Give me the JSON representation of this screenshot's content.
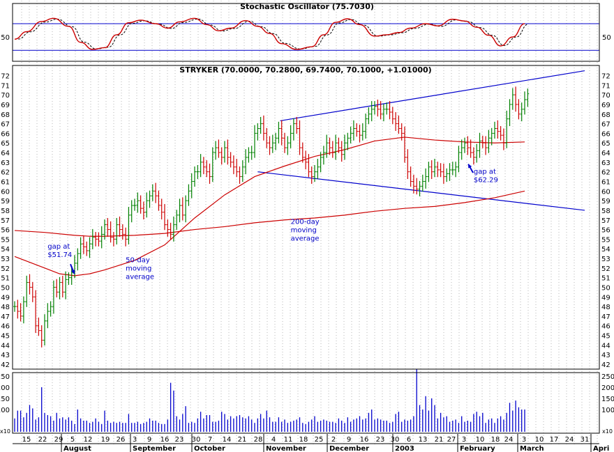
{
  "chart_data": [
    {
      "type": "line",
      "panel": "stochastic",
      "title": "Stochastic Oscillator (75.7030)",
      "ylim": [
        0,
        100
      ],
      "y_ticks": [
        "50"
      ],
      "reference_lines": [
        80,
        20
      ],
      "grid": "vertical dotted",
      "colors": {
        "k_line": "#cc0000",
        "d_line": "#000000",
        "reference": "#0000cc"
      },
      "series": [
        {
          "x": [
            0,
            4,
            9,
            13,
            18,
            22,
            26,
            30,
            34,
            38,
            42,
            47,
            51,
            55,
            60,
            64,
            68,
            72,
            77,
            81,
            85,
            89,
            94,
            99,
            103,
            107,
            111,
            115,
            120,
            124,
            128,
            132,
            137,
            141,
            146,
            150,
            154,
            158,
            162,
            166,
            170
          ],
          "values": [
            45,
            62,
            85,
            92,
            74,
            38,
            22,
            26,
            55,
            82,
            88,
            80,
            70,
            84,
            92,
            78,
            64,
            70,
            87,
            74,
            58,
            35,
            22,
            28,
            55,
            83,
            91,
            78,
            52,
            55,
            60,
            70,
            80,
            75,
            90,
            86,
            72,
            54,
            30,
            50,
            80
          ]
        }
      ]
    },
    {
      "type": "bar",
      "panel": "price",
      "title": "STRYKER (70.0000, 70.2800, 69.7400, 70.1000, +1.01000)",
      "ylim": [
        41,
        73
      ],
      "y_ticks": [
        "42",
        "43",
        "44",
        "45",
        "46",
        "47",
        "48",
        "49",
        "50",
        "51",
        "52",
        "53",
        "54",
        "55",
        "56",
        "57",
        "58",
        "59",
        "60",
        "61",
        "62",
        "63",
        "64",
        "65",
        "66",
        "67",
        "68",
        "69",
        "70",
        "71",
        "72"
      ],
      "grid": "vertical dotted",
      "colors": {
        "up_bar": "#008000",
        "down_bar": "#cc0000",
        "moving_average": "#cc0000",
        "trendline": "#0000cc",
        "annotation": "#0000cc"
      },
      "closes": [
        48,
        47.5,
        47,
        48.5,
        50.5,
        50,
        49,
        46,
        45.5,
        44.5,
        46.5,
        47.5,
        48,
        50,
        49.5,
        50.5,
        49.5,
        50.8,
        51,
        51.5,
        52.5,
        53.5,
        54.5,
        54.2,
        53.8,
        54.5,
        55.2,
        55,
        54.8,
        55.5,
        56.5,
        56,
        55.2,
        55,
        56.5,
        56,
        55.5,
        55,
        57.5,
        58.5,
        58.5,
        59,
        58.2,
        57.8,
        59,
        59.5,
        60,
        59.5,
        58.5,
        57.8,
        56.5,
        56,
        55.5,
        56.5,
        57.5,
        58.5,
        57.5,
        59,
        60,
        61,
        62,
        62,
        63,
        62.5,
        62,
        61.5,
        64,
        64.5,
        64,
        63.5,
        64.5,
        63.5,
        63,
        62.5,
        62,
        61.5,
        62.5,
        63.5,
        64,
        64,
        66,
        66.5,
        67,
        66,
        65,
        64.5,
        65,
        65.5,
        66.5,
        65.5,
        64.5,
        65,
        66,
        67,
        66.5,
        64.5,
        63.5,
        63,
        62,
        61.5,
        62,
        62.5,
        63.5,
        64,
        65,
        64.5,
        64,
        65,
        64.5,
        63.8,
        65,
        65.5,
        66,
        66.5,
        66.2,
        65.8,
        66.2,
        67.5,
        68,
        68.5,
        68.8,
        68.5,
        68,
        68.5,
        68.5,
        68.2,
        67.5,
        67,
        66.5,
        66,
        63.5,
        62,
        61,
        60.5,
        60.2,
        60.5,
        61,
        61.5,
        62.5,
        62,
        62.5,
        62.2,
        62,
        61.5,
        61.8,
        62.2,
        62.2,
        62.5,
        64,
        64.5,
        65,
        64.5,
        64,
        63.5,
        64.2,
        65.2,
        65,
        64.5,
        65.5,
        66,
        66.5,
        66.2,
        65.8,
        65,
        67.5,
        69,
        70,
        69,
        68,
        68.5,
        69.5,
        70.1
      ],
      "series": [
        {
          "name": "50-day moving average",
          "x": [
            0,
            5,
            10,
            15,
            20,
            25,
            30,
            40,
            50,
            60,
            70,
            80,
            90,
            100,
            110,
            120,
            130,
            140,
            150,
            160,
            170
          ],
          "values": [
            53.2,
            52.6,
            52,
            51.4,
            51.2,
            51.4,
            51.8,
            52.8,
            54.4,
            57.2,
            59.6,
            61.5,
            62.6,
            63.6,
            64.3,
            65.2,
            65.6,
            65.3,
            65.1,
            65,
            65.1
          ]
        },
        {
          "name": "200-day moving average",
          "x": [
            0,
            10,
            20,
            25,
            30,
            40,
            50,
            60,
            70,
            80,
            90,
            100,
            110,
            120,
            130,
            140,
            150,
            160,
            170
          ],
          "values": [
            55.9,
            55.7,
            55.4,
            55.3,
            55.3,
            55.4,
            55.6,
            56,
            56.3,
            56.7,
            57,
            57.2,
            57.5,
            57.9,
            58.2,
            58.4,
            58.8,
            59.3,
            60
          ]
        }
      ],
      "trendlines": [
        {
          "points": [
            [
              88.5,
              67.3
            ],
            [
              190,
              72.5
            ]
          ]
        },
        {
          "points": [
            [
              81,
              62
            ],
            [
              190,
              58
            ]
          ]
        }
      ],
      "annotations": [
        {
          "lines": [
            "gap at",
            "$51.74"
          ],
          "x": 11,
          "y": 54
        },
        {
          "lines": [
            "50-day",
            "moving",
            "average"
          ],
          "x": 37,
          "y": 52.6
        },
        {
          "lines": [
            "200-day",
            "moving",
            "average"
          ],
          "x": 92,
          "y": 56.6
        },
        {
          "lines": [
            "gap at",
            "$62.29"
          ],
          "x": 153,
          "y": 61.8
        }
      ]
    },
    {
      "type": "bar",
      "panel": "volume",
      "ylim": [
        0,
        290
      ],
      "y_ticks": [
        "100",
        "150",
        "200",
        "250"
      ],
      "unit_label": "x10",
      "colors": {
        "bar": "#0000cc"
      },
      "values": [
        60,
        95,
        95,
        65,
        85,
        120,
        105,
        55,
        65,
        200,
        85,
        75,
        70,
        50,
        85,
        60,
        65,
        55,
        65,
        50,
        35,
        100,
        60,
        50,
        50,
        40,
        45,
        60,
        45,
        35,
        95,
        50,
        40,
        45,
        40,
        45,
        40,
        40,
        80,
        40,
        40,
        45,
        35,
        40,
        45,
        60,
        50,
        50,
        40,
        35,
        35,
        55,
        220,
        185,
        70,
        55,
        80,
        115,
        40,
        45,
        40,
        60,
        90,
        60,
        75,
        75,
        45,
        45,
        50,
        90,
        80,
        55,
        70,
        60,
        70,
        75,
        65,
        60,
        70,
        55,
        40,
        60,
        80,
        60,
        95,
        65,
        45,
        45,
        65,
        45,
        55,
        40,
        45,
        50,
        55,
        65,
        40,
        35,
        45,
        55,
        70,
        45,
        50,
        55,
        50,
        45,
        45,
        40,
        60,
        50,
        40,
        65,
        45,
        55,
        60,
        70,
        55,
        60,
        85,
        100,
        55,
        60,
        55,
        50,
        50,
        40,
        45,
        80,
        90,
        45,
        55,
        50,
        55,
        70,
        280,
        120,
        100,
        160,
        95,
        150,
        120,
        60,
        85,
        65,
        70,
        45,
        50,
        55,
        40,
        70,
        45,
        50,
        45,
        80,
        90,
        70,
        85,
        40,
        55,
        60,
        40,
        60,
        70,
        55,
        85,
        130,
        95,
        140,
        110,
        100,
        100
      ],
      "x_ticks": [
        "15",
        "22",
        "29",
        "5",
        "12",
        "19",
        "26",
        "3",
        "9",
        "16",
        "23",
        "30",
        "7",
        "14",
        "21",
        "28",
        "4",
        "11",
        "18",
        "25",
        "2",
        "9",
        "16",
        "23",
        "30",
        "6",
        "13",
        "21",
        "27",
        "3",
        "10",
        "18",
        "24",
        "3",
        "10",
        "17",
        "24",
        "31"
      ],
      "months": [
        "August",
        "September",
        "October",
        "November",
        "December",
        "2003",
        "February",
        "March",
        "Apri"
      ]
    }
  ]
}
